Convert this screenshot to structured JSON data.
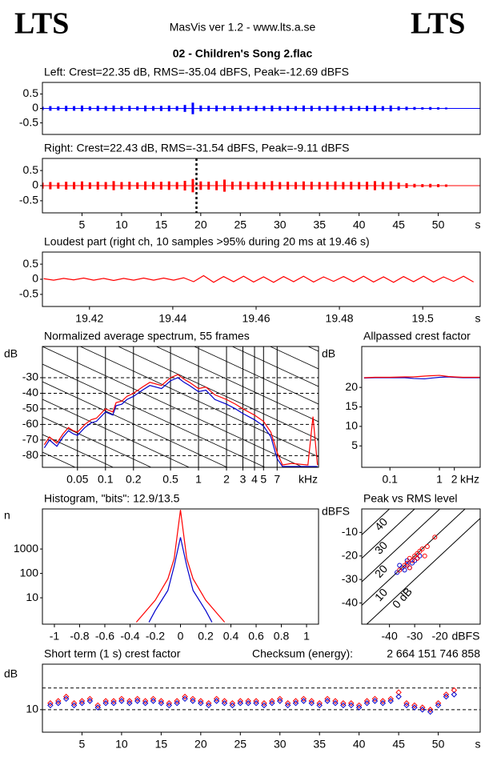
{
  "header": {
    "logo_left": "LTS",
    "app": "MasVis ver 1.2 - www.lts.a.se",
    "logo_right": "LTS",
    "file": "02 - Children's Song 2.flac"
  },
  "chart_data": [
    {
      "type": "waveform",
      "title": "Left: Crest=22.35 dB, RMS=-35.04 dBFS, Peak=-12.69 dBFS",
      "xlim": [
        0,
        55.3
      ],
      "ylim": [
        -0.9,
        0.9
      ],
      "yticks": [
        0.5,
        0,
        -0.5
      ],
      "color": "#0000ff",
      "x": [
        0,
        1,
        2,
        3,
        4,
        5,
        6,
        7,
        8,
        9,
        10,
        11,
        12,
        13,
        14,
        15,
        16,
        17,
        18,
        19,
        20,
        21,
        22,
        23,
        24,
        25,
        26,
        27,
        28,
        29,
        30,
        31,
        32,
        33,
        34,
        35,
        36,
        37,
        38,
        39,
        40,
        41,
        42,
        43,
        44,
        45,
        46,
        47,
        48,
        49,
        50,
        51,
        52
      ],
      "values": [
        0.06,
        0.08,
        0.07,
        0.09,
        0.08,
        0.1,
        0.07,
        0.09,
        0.08,
        0.1,
        0.08,
        0.09,
        0.07,
        0.1,
        0.08,
        0.09,
        0.1,
        0.08,
        0.12,
        0.2,
        0.1,
        0.09,
        0.1,
        0.08,
        0.09,
        0.1,
        0.08,
        0.09,
        0.08,
        0.1,
        0.08,
        0.09,
        0.08,
        0.1,
        0.09,
        0.08,
        0.09,
        0.1,
        0.08,
        0.09,
        0.08,
        0.09,
        0.1,
        0.08,
        0.1,
        0.07,
        0.06,
        0.05,
        0.04,
        0.05,
        0.04,
        0.03,
        0.01
      ]
    },
    {
      "type": "waveform",
      "title": "Right: Crest=22.43 dB, RMS=-31.54 dBFS, Peak=-9.11 dBFS",
      "xlim": [
        0,
        55.3
      ],
      "ylim": [
        -0.9,
        0.9
      ],
      "yticks": [
        0.5,
        0,
        -0.5
      ],
      "xticks": [
        5,
        10,
        15,
        20,
        25,
        30,
        35,
        40,
        45,
        50
      ],
      "xlabel": "s",
      "color": "#ff0000",
      "marker_x": 19.46,
      "x": [
        0,
        1,
        2,
        3,
        4,
        5,
        6,
        7,
        8,
        9,
        10,
        11,
        12,
        13,
        14,
        15,
        16,
        17,
        18,
        19,
        20,
        21,
        22,
        23,
        24,
        25,
        26,
        27,
        28,
        29,
        30,
        31,
        32,
        33,
        34,
        35,
        36,
        37,
        38,
        39,
        40,
        41,
        42,
        43,
        44,
        45,
        46,
        47,
        48,
        49,
        50,
        51,
        52
      ],
      "values": [
        0.1,
        0.12,
        0.1,
        0.13,
        0.12,
        0.14,
        0.11,
        0.13,
        0.12,
        0.15,
        0.12,
        0.13,
        0.11,
        0.14,
        0.12,
        0.13,
        0.14,
        0.12,
        0.16,
        0.22,
        0.14,
        0.13,
        0.15,
        0.2,
        0.13,
        0.14,
        0.12,
        0.13,
        0.12,
        0.15,
        0.12,
        0.13,
        0.12,
        0.14,
        0.13,
        0.12,
        0.13,
        0.14,
        0.12,
        0.13,
        0.12,
        0.13,
        0.15,
        0.12,
        0.14,
        0.1,
        0.08,
        0.06,
        0.05,
        0.06,
        0.05,
        0.04,
        0.01
      ]
    },
    {
      "type": "line",
      "title": "Loudest part (right ch, 10 samples >95% during 20 ms at 19.46 s)",
      "xlim": [
        19.4087,
        19.5138
      ],
      "ylim": [
        -0.9,
        0.9
      ],
      "yticks": [
        0.5,
        0,
        -0.5
      ],
      "xticks": [
        19.42,
        19.44,
        19.46,
        19.48,
        19.5
      ],
      "xlabel": "s",
      "color": "#ff0000",
      "x": [
        19.409,
        19.4114,
        19.4138,
        19.4162,
        19.4186,
        19.421,
        19.4234,
        19.4258,
        19.4282,
        19.4306,
        19.433,
        19.4354,
        19.4378,
        19.4402,
        19.4426,
        19.445,
        19.4474,
        19.4498,
        19.4522,
        19.4546,
        19.457,
        19.4594,
        19.4618,
        19.4642,
        19.4666,
        19.469,
        19.4714,
        19.4738,
        19.4762,
        19.4786,
        19.481,
        19.4834,
        19.4858,
        19.4882,
        19.4906,
        19.493,
        19.4954,
        19.4978,
        19.5002,
        19.5026,
        19.505,
        19.5074,
        19.5098,
        19.5122
      ],
      "values": [
        0.02,
        -0.03,
        0.03,
        -0.02,
        0.04,
        -0.03,
        0.03,
        -0.04,
        0.03,
        -0.03,
        0.04,
        -0.03,
        0.04,
        -0.03,
        0.05,
        -0.08,
        0.12,
        -0.1,
        0.09,
        -0.08,
        0.1,
        -0.09,
        0.08,
        -0.1,
        0.09,
        -0.08,
        0.1,
        -0.09,
        0.08,
        -0.07,
        0.09,
        -0.08,
        0.1,
        -0.09,
        0.08,
        -0.1,
        0.09,
        -0.08,
        0.1,
        -0.09,
        0.08,
        -0.07,
        0.1,
        -0.09
      ]
    },
    {
      "type": "line",
      "title": "Normalized average spectrum, 55 frames",
      "xscale": "log",
      "xlim": [
        0.021,
        19.5
      ],
      "ylim": [
        -87.5,
        -10
      ],
      "ylabel": "dB",
      "xlabel": "kHz",
      "grid": true,
      "yticks": [
        -30,
        -40,
        -50,
        -60,
        -70,
        -80
      ],
      "xticks": [
        0.05,
        0.1,
        0.2,
        0.5,
        1,
        2,
        3,
        4,
        5,
        7
      ],
      "series": [
        {
          "color": "#0000cc",
          "x": [
            0.022,
            0.025,
            0.03,
            0.035,
            0.04,
            0.045,
            0.05,
            0.06,
            0.07,
            0.08,
            0.1,
            0.12,
            0.13,
            0.15,
            0.17,
            0.2,
            0.25,
            0.3,
            0.4,
            0.5,
            0.6,
            0.7,
            0.8,
            1,
            1.2,
            1.5,
            2,
            2.5,
            3,
            4,
            5,
            6,
            7,
            8,
            10,
            15,
            17,
            19
          ],
          "values": [
            -75,
            -70,
            -74,
            -68,
            -64,
            -66,
            -67,
            -62,
            -59,
            -58,
            -52,
            -54,
            -48,
            -47,
            -44,
            -42,
            -38,
            -35,
            -37,
            -32,
            -30,
            -33,
            -35,
            -39,
            -38,
            -44,
            -47,
            -50,
            -53,
            -57,
            -61,
            -68,
            -82,
            -87,
            -87,
            -87,
            -87,
            -87
          ]
        },
        {
          "color": "#ff0000",
          "x": [
            0.022,
            0.025,
            0.03,
            0.035,
            0.04,
            0.045,
            0.05,
            0.06,
            0.07,
            0.08,
            0.1,
            0.12,
            0.13,
            0.15,
            0.17,
            0.2,
            0.25,
            0.3,
            0.4,
            0.5,
            0.6,
            0.7,
            0.8,
            1,
            1.2,
            1.5,
            2,
            2.5,
            3,
            4,
            5,
            6,
            7,
            8,
            10,
            15,
            17,
            19
          ],
          "values": [
            -73,
            -68,
            -72,
            -66,
            -62,
            -64,
            -65,
            -60,
            -57,
            -56,
            -50,
            -52,
            -46,
            -45,
            -42,
            -40,
            -36,
            -33,
            -35,
            -30,
            -28,
            -31,
            -33,
            -37,
            -36,
            -41,
            -44,
            -47,
            -50,
            -54,
            -58,
            -65,
            -78,
            -86,
            -85,
            -86,
            -55,
            -86
          ]
        }
      ]
    },
    {
      "type": "line",
      "title": "Allpassed crest factor",
      "xscale": "log",
      "xlim": [
        0.027,
        6.65
      ],
      "ylim": [
        -0.5,
        30.5
      ],
      "ylabel": "dB",
      "xlabel": "kHz",
      "yticks": [
        20,
        15,
        10,
        5
      ],
      "xticks": [
        0.1,
        1,
        2
      ],
      "series": [
        {
          "color": "#0000cc",
          "x": [
            0.03,
            0.05,
            0.1,
            0.2,
            0.3,
            0.5,
            0.7,
            1,
            1.5,
            2,
            3,
            5,
            6.5
          ],
          "values": [
            22.4,
            22.5,
            22.5,
            22.5,
            22.3,
            22.2,
            22.4,
            22.6,
            22.7,
            22.6,
            22.5,
            22.5,
            22.5
          ]
        },
        {
          "color": "#ff0000",
          "x": [
            0.03,
            0.05,
            0.1,
            0.2,
            0.3,
            0.5,
            0.7,
            1,
            1.5,
            2,
            3,
            5,
            6.5
          ],
          "values": [
            22.5,
            22.6,
            22.6,
            22.7,
            22.7,
            22.9,
            23,
            23.1,
            22.8,
            22.7,
            22.6,
            22.6,
            22.6
          ]
        }
      ]
    },
    {
      "type": "line",
      "title": "Histogram, \"bits\": 12.9/13.5",
      "yscale": "log",
      "xlim": [
        -1.095,
        1.095
      ],
      "ylim": [
        0.83,
        44000
      ],
      "ylabel": "n",
      "yticks": [
        10,
        100,
        1000
      ],
      "xticks": [
        -1,
        -0.8,
        -0.6,
        -0.4,
        -0.2,
        0,
        0.2,
        0.4,
        0.6,
        0.8,
        1
      ],
      "series": [
        {
          "color": "#ff0000",
          "x": [
            -0.35,
            -0.3,
            -0.2,
            -0.1,
            -0.05,
            0,
            0.05,
            0.1,
            0.2,
            0.3,
            0.35
          ],
          "values": [
            1,
            2,
            8,
            60,
            400,
            40000,
            400,
            60,
            8,
            2,
            1
          ]
        },
        {
          "color": "#0000cc",
          "x": [
            -0.25,
            -0.2,
            -0.1,
            -0.05,
            0,
            0.05,
            0.1,
            0.2,
            0.25
          ],
          "values": [
            1,
            3,
            20,
            200,
            3000,
            200,
            20,
            3,
            1
          ]
        }
      ]
    },
    {
      "type": "scatter",
      "title": "Peak vs RMS level",
      "xlim": [
        -51,
        -4
      ],
      "ylim": [
        -49,
        0
      ],
      "ylabel": "dBFS",
      "xlabel": "dBFS",
      "marker": "circle",
      "yticks": [
        -10,
        -20,
        -30,
        -40
      ],
      "xticks": [
        -40,
        -30,
        -20
      ],
      "crest_lines": [
        40,
        30,
        20,
        10,
        {
          "value": 0,
          "label": "0 dB"
        }
      ],
      "series": [
        {
          "color": "#0000cc",
          "x": [
            -37,
            -35,
            -34,
            -33,
            -32,
            -31,
            -30,
            -29,
            -28,
            -36,
            -33
          ],
          "values": [
            -27,
            -25,
            -26,
            -24,
            -25,
            -23,
            -22,
            -21,
            -20,
            -24,
            -22
          ]
        },
        {
          "color": "#ff0000",
          "x": [
            -36,
            -34,
            -33,
            -32,
            -31,
            -30,
            -29,
            -28,
            -27,
            -26,
            -25,
            -32,
            -29,
            -22
          ],
          "values": [
            -26,
            -24,
            -23,
            -21,
            -22,
            -20,
            -19,
            -18,
            -17,
            -20,
            -16,
            -25,
            -21,
            -12
          ]
        }
      ]
    },
    {
      "type": "scatter",
      "title": "Short term (1 s) crest factor",
      "annotation": "Checksum (energy):",
      "checksum": "2 664 151 746 858",
      "xlim": [
        0,
        55.3
      ],
      "ylim": [
        -0.4,
        31
      ],
      "ylabel": "dB",
      "xlabel": "s",
      "marker": "diamond",
      "yticks": [
        10
      ],
      "hlines": [
        10,
        20
      ],
      "xticks": [
        5,
        10,
        15,
        20,
        25,
        30,
        35,
        40,
        45,
        50
      ],
      "series": [
        {
          "color": "#ff0000",
          "x": [
            1,
            2,
            3,
            4,
            5,
            6,
            7,
            8,
            9,
            10,
            11,
            12,
            13,
            14,
            15,
            16,
            17,
            18,
            19,
            20,
            21,
            22,
            23,
            24,
            25,
            26,
            27,
            28,
            29,
            30,
            31,
            32,
            33,
            34,
            35,
            36,
            37,
            38,
            39,
            40,
            41,
            42,
            43,
            44,
            45,
            46,
            47,
            48,
            49,
            50,
            51,
            52
          ],
          "values": [
            13,
            14,
            16,
            13,
            14,
            15,
            12,
            14,
            14,
            15,
            14,
            15,
            14,
            15,
            14,
            13,
            14,
            16,
            15,
            14,
            13,
            15,
            14,
            13,
            14,
            14,
            14,
            13,
            14,
            15,
            13,
            14,
            15,
            14,
            13,
            15,
            14,
            13,
            13,
            12,
            14,
            15,
            14,
            15,
            18,
            13,
            12,
            11,
            10,
            13,
            17,
            19
          ]
        },
        {
          "color": "#0000cc",
          "x": [
            1,
            2,
            3,
            4,
            5,
            6,
            7,
            8,
            9,
            10,
            11,
            12,
            13,
            14,
            15,
            16,
            17,
            18,
            19,
            20,
            21,
            22,
            23,
            24,
            25,
            26,
            27,
            28,
            29,
            30,
            31,
            32,
            33,
            34,
            35,
            36,
            37,
            38,
            39,
            40,
            41,
            42,
            43,
            44,
            45,
            46,
            47,
            48,
            49,
            50,
            51,
            52
          ],
          "values": [
            12,
            13,
            15,
            12,
            13,
            14,
            11,
            13,
            13,
            14,
            13,
            14,
            13,
            14,
            13,
            12,
            13,
            15,
            14,
            13,
            12,
            14,
            13,
            12,
            13,
            13,
            13,
            12,
            13,
            14,
            12,
            13,
            14,
            13,
            12,
            14,
            13,
            12,
            12,
            11,
            13,
            14,
            13,
            14,
            16,
            12,
            11,
            10,
            9,
            12,
            16,
            17
          ]
        }
      ]
    }
  ]
}
